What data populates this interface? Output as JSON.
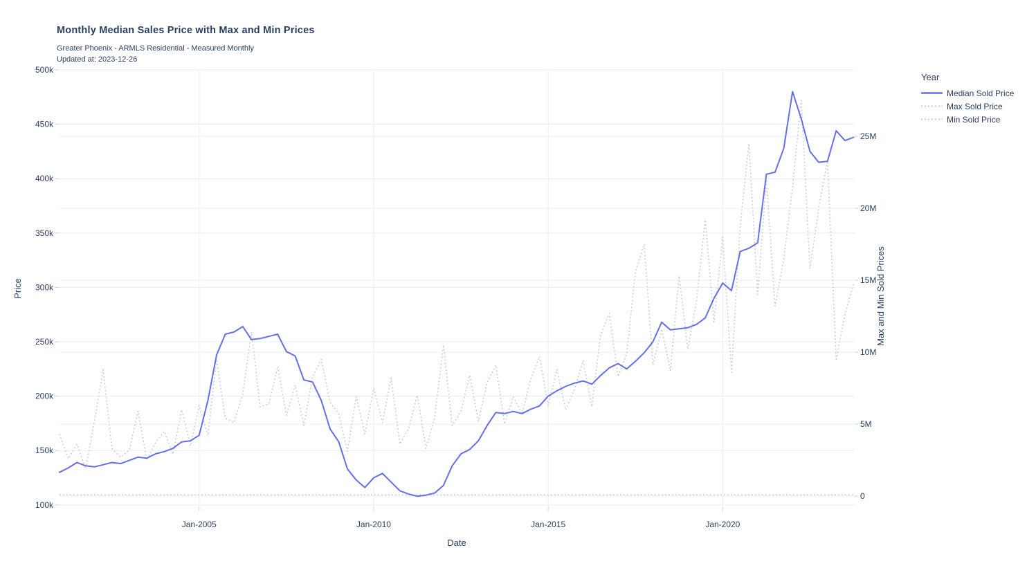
{
  "header": {
    "title": "Monthly Median Sales Price with Max and Min Prices",
    "subtitle": "Greater Phoenix - ARMLS Residential - Measured Monthly",
    "updated": "Updated at: 2023-12-26"
  },
  "legend": {
    "title": "Year",
    "items": [
      {
        "label": "Median Sold Price",
        "style": "solid",
        "color": "#646ee8"
      },
      {
        "label": "Max Sold Price",
        "style": "dotted",
        "color": "#c9c9c9"
      },
      {
        "label": "Min Sold Price",
        "style": "dotted",
        "color": "#c9c9c9"
      }
    ]
  },
  "chart_data": {
    "type": "line",
    "title": "Monthly Median Sales Price with Max and Min Prices",
    "xlabel": "Date",
    "ylabel_left": "Price",
    "ylabel_right": "Max and Min Sold Prices",
    "x_unit": "decimal_year",
    "x_start": 2001.0,
    "x_step": 0.25,
    "x_range": [
      2000.98,
      2023.78
    ],
    "x_ticks": {
      "values": [
        2005,
        2010,
        2015,
        2020
      ],
      "labels": [
        "Jan-2005",
        "Jan-2010",
        "Jan-2015",
        "Jan-2020"
      ]
    },
    "y_left": {
      "unit": "USD thousands",
      "range": [
        98,
        500
      ],
      "tick_values": [
        100,
        150,
        200,
        250,
        300,
        350,
        400,
        450,
        500
      ],
      "tick_labels": [
        "100k",
        "150k",
        "200k",
        "250k",
        "300k",
        "350k",
        "400k",
        "450k",
        "500k"
      ]
    },
    "y_right": {
      "unit": "USD millions",
      "range": [
        -0.77,
        29.62
      ],
      "tick_values": [
        0,
        5,
        10,
        15,
        20,
        25
      ],
      "tick_labels": [
        "0",
        "5M",
        "10M",
        "15M",
        "20M",
        "25M"
      ]
    },
    "grid": true,
    "legend_position": "top-right",
    "series": [
      {
        "name": "Median Sold Price",
        "axis": "left",
        "line": "solid",
        "color": "#646ee8",
        "values": [
          130,
          134,
          139,
          136,
          135,
          137,
          139,
          138,
          141,
          144,
          143,
          147,
          149,
          152,
          158,
          159,
          164,
          196,
          238,
          257,
          259,
          264,
          252,
          253,
          255,
          257,
          241,
          237,
          215,
          213,
          196,
          170,
          158,
          133,
          123,
          116,
          125,
          129,
          121,
          113,
          110,
          108,
          109,
          111,
          118,
          136,
          147,
          151,
          159,
          173,
          185,
          184,
          186,
          184,
          188,
          191,
          200,
          205,
          209,
          212,
          214,
          211,
          219,
          226,
          230,
          225,
          232,
          240,
          250,
          268,
          261,
          262,
          263,
          266,
          272,
          290,
          304,
          297,
          333,
          336,
          341,
          404,
          406,
          428,
          480,
          455,
          425,
          415,
          416,
          444,
          435,
          438
        ]
      },
      {
        "name": "Max Sold Price",
        "axis": "right",
        "line": "dotted",
        "color": "#c9c9c9",
        "values": [
          4.3,
          2.6,
          3.6,
          1.9,
          5.2,
          8.8,
          3.3,
          2.7,
          3.2,
          5.9,
          2.5,
          3.7,
          4.5,
          2.9,
          6.0,
          3.5,
          6.3,
          4.2,
          9.5,
          5.4,
          5.1,
          7.1,
          11.4,
          6.2,
          6.4,
          9.0,
          5.6,
          7.7,
          4.9,
          8.3,
          9.5,
          6.5,
          5.7,
          3.1,
          6.9,
          4.3,
          7.5,
          5.1,
          8.2,
          3.6,
          4.7,
          7.0,
          3.3,
          5.5,
          10.5,
          4.9,
          5.9,
          8.4,
          5.2,
          7.9,
          9.1,
          5.0,
          6.9,
          5.7,
          8.1,
          9.7,
          6.3,
          8.8,
          6.0,
          7.4,
          9.4,
          6.2,
          11.2,
          12.7,
          8.3,
          9.9,
          15.6,
          17.5,
          9.1,
          11.6,
          8.7,
          15.3,
          10.2,
          13.6,
          19.2,
          12.1,
          18.0,
          8.6,
          18.8,
          24.5,
          14.0,
          22.0,
          13.2,
          16.5,
          21.5,
          27.5,
          15.8,
          20.0,
          23.3,
          9.5,
          12.6,
          14.8
        ]
      },
      {
        "name": "Min Sold Price",
        "axis": "right",
        "line": "dotted",
        "color": "#c9c9c9",
        "constant": 0.08
      }
    ]
  },
  "style": {
    "gridline_color": "#e8ecf4",
    "tick_mark_color": "#ccd3de",
    "text_color": "#2a3f5f",
    "background": "#ffffff"
  }
}
